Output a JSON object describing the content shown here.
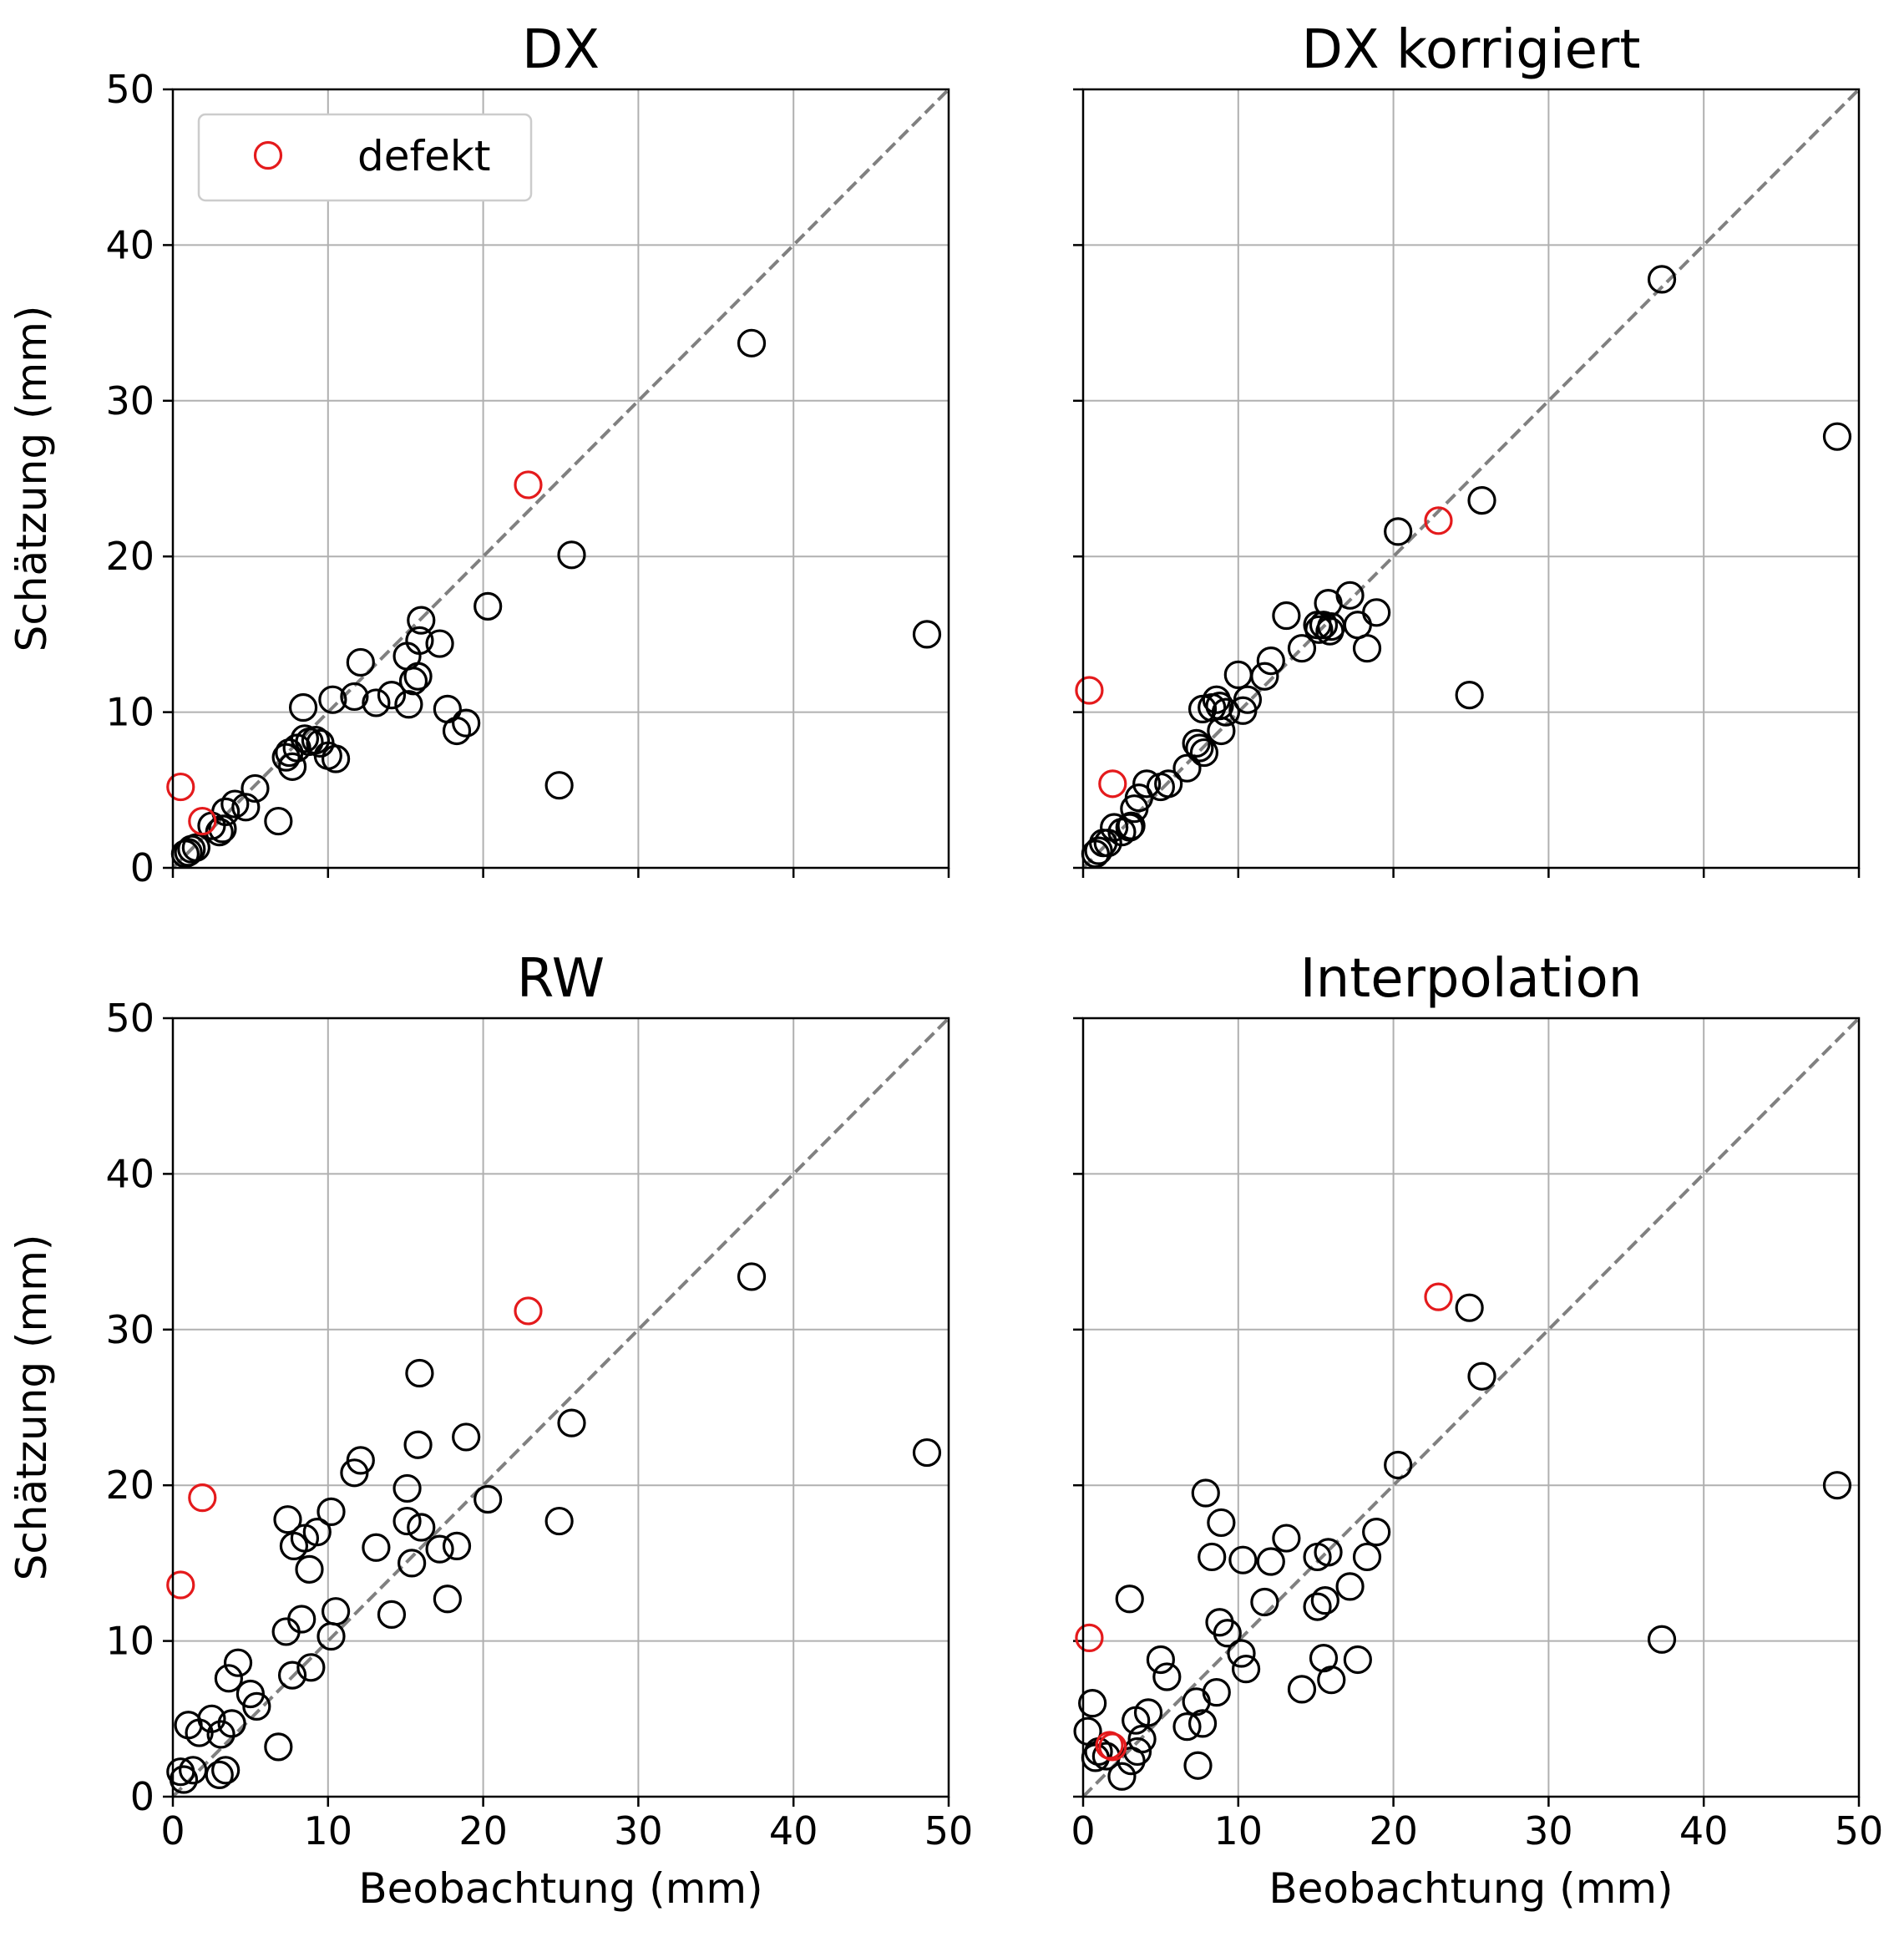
{
  "legend": {
    "label": "defekt",
    "color": "#e41a1c"
  },
  "colors": {
    "normal": "#000000",
    "defective": "#e41a1c",
    "identity": "#808080",
    "grid": "#b0b0b0"
  },
  "chart_data": [
    {
      "type": "scatter",
      "title": "DX",
      "xlabel": "",
      "ylabel": "Schätzung (mm)",
      "xlim": [
        0,
        50
      ],
      "ylim": [
        0,
        50
      ],
      "xticks": [
        0,
        10,
        20,
        30,
        40,
        50
      ],
      "yticks": [
        0,
        10,
        20,
        30,
        40,
        50
      ],
      "show_xticklabels": false,
      "show_yticklabels": true,
      "grid": true,
      "identity_line": true,
      "legend": "top-left",
      "series": [
        {
          "name": "",
          "color": "#000000",
          "points": [
            [
              0.8,
              0.9
            ],
            [
              1.0,
              1.0
            ],
            [
              1.2,
              1.2
            ],
            [
              1.5,
              1.3
            ],
            [
              2.5,
              2.7
            ],
            [
              3.0,
              2.3
            ],
            [
              3.2,
              2.5
            ],
            [
              3.4,
              3.6
            ],
            [
              4.0,
              4.1
            ],
            [
              4.7,
              3.9
            ],
            [
              5.3,
              5.1
            ],
            [
              6.8,
              3.0
            ],
            [
              7.3,
              7.1
            ],
            [
              7.5,
              7.4
            ],
            [
              7.7,
              6.5
            ],
            [
              8.0,
              7.7
            ],
            [
              8.4,
              10.3
            ],
            [
              8.5,
              8.3
            ],
            [
              8.8,
              8.1
            ],
            [
              9.2,
              8.2
            ],
            [
              9.5,
              8.0
            ],
            [
              10.0,
              7.2
            ],
            [
              10.5,
              7.0
            ],
            [
              10.3,
              10.8
            ],
            [
              11.7,
              11.0
            ],
            [
              12.1,
              13.2
            ],
            [
              13.1,
              10.6
            ],
            [
              14.1,
              11.1
            ],
            [
              15.1,
              13.6
            ],
            [
              15.2,
              10.5
            ],
            [
              15.5,
              12.0
            ],
            [
              15.8,
              12.3
            ],
            [
              15.9,
              14.6
            ],
            [
              16.0,
              15.9
            ],
            [
              17.2,
              14.4
            ],
            [
              17.7,
              10.2
            ],
            [
              18.3,
              8.8
            ],
            [
              18.9,
              9.3
            ],
            [
              20.3,
              16.8
            ],
            [
              24.9,
              5.3
            ],
            [
              25.7,
              20.1
            ],
            [
              37.3,
              33.7
            ],
            [
              48.6,
              15.0
            ]
          ]
        },
        {
          "name": "defekt",
          "color": "#e41a1c",
          "points": [
            [
              0.5,
              5.2
            ],
            [
              1.9,
              3.0
            ],
            [
              22.9,
              24.6
            ]
          ]
        }
      ]
    },
    {
      "type": "scatter",
      "title": "DX korrigiert",
      "xlabel": "",
      "ylabel": "",
      "xlim": [
        0,
        50
      ],
      "ylim": [
        0,
        50
      ],
      "xticks": [
        0,
        10,
        20,
        30,
        40,
        50
      ],
      "yticks": [
        0,
        10,
        20,
        30,
        40,
        50
      ],
      "show_xticklabels": false,
      "show_yticklabels": false,
      "grid": true,
      "identity_line": true,
      "series": [
        {
          "name": "",
          "color": "#000000",
          "points": [
            [
              0.8,
              0.9
            ],
            [
              1.0,
              1.1
            ],
            [
              1.3,
              1.6
            ],
            [
              1.6,
              1.6
            ],
            [
              2.0,
              2.6
            ],
            [
              2.5,
              2.3
            ],
            [
              3.0,
              2.6
            ],
            [
              3.1,
              2.7
            ],
            [
              3.3,
              3.8
            ],
            [
              3.6,
              4.5
            ],
            [
              4.1,
              5.4
            ],
            [
              5.0,
              5.2
            ],
            [
              5.5,
              5.4
            ],
            [
              6.7,
              6.4
            ],
            [
              7.3,
              8.0
            ],
            [
              7.5,
              7.7
            ],
            [
              7.7,
              10.2
            ],
            [
              7.8,
              7.4
            ],
            [
              8.3,
              10.3
            ],
            [
              8.6,
              10.8
            ],
            [
              8.8,
              10.4
            ],
            [
              8.9,
              8.8
            ],
            [
              9.2,
              10.0
            ],
            [
              10.0,
              12.4
            ],
            [
              10.3,
              10.1
            ],
            [
              10.6,
              10.8
            ],
            [
              11.7,
              12.3
            ],
            [
              12.1,
              13.3
            ],
            [
              13.1,
              16.2
            ],
            [
              14.1,
              14.1
            ],
            [
              15.1,
              15.6
            ],
            [
              15.2,
              15.3
            ],
            [
              15.5,
              15.6
            ],
            [
              15.8,
              17.0
            ],
            [
              15.9,
              15.2
            ],
            [
              16.0,
              15.5
            ],
            [
              17.2,
              17.5
            ],
            [
              17.7,
              15.6
            ],
            [
              18.3,
              14.1
            ],
            [
              18.9,
              16.4
            ],
            [
              20.3,
              21.6
            ],
            [
              24.9,
              11.1
            ],
            [
              25.7,
              23.6
            ],
            [
              37.3,
              37.8
            ],
            [
              48.6,
              27.7
            ]
          ]
        },
        {
          "name": "defekt",
          "color": "#e41a1c",
          "points": [
            [
              0.4,
              11.4
            ],
            [
              1.9,
              5.4
            ],
            [
              22.9,
              22.3
            ]
          ]
        }
      ]
    },
    {
      "type": "scatter",
      "title": "RW",
      "xlabel": "Beobachtung (mm)",
      "ylabel": "Schätzung (mm)",
      "xlim": [
        0,
        50
      ],
      "ylim": [
        0,
        50
      ],
      "xticks": [
        0,
        10,
        20,
        30,
        40,
        50
      ],
      "yticks": [
        0,
        10,
        20,
        30,
        40,
        50
      ],
      "show_xticklabels": true,
      "show_yticklabels": true,
      "grid": true,
      "identity_line": true,
      "series": [
        {
          "name": "",
          "color": "#000000",
          "points": [
            [
              0.5,
              1.6
            ],
            [
              0.7,
              1.1
            ],
            [
              1.0,
              4.6
            ],
            [
              1.3,
              1.7
            ],
            [
              1.7,
              4.1
            ],
            [
              2.5,
              5.0
            ],
            [
              3.0,
              1.4
            ],
            [
              3.1,
              4.0
            ],
            [
              3.4,
              1.7
            ],
            [
              3.6,
              7.6
            ],
            [
              3.8,
              4.7
            ],
            [
              4.2,
              8.6
            ],
            [
              5.0,
              6.6
            ],
            [
              5.4,
              5.8
            ],
            [
              6.8,
              3.2
            ],
            [
              7.3,
              10.6
            ],
            [
              7.4,
              17.8
            ],
            [
              7.7,
              7.8
            ],
            [
              7.8,
              16.1
            ],
            [
              8.3,
              11.4
            ],
            [
              8.5,
              16.6
            ],
            [
              8.8,
              14.6
            ],
            [
              8.9,
              8.3
            ],
            [
              9.3,
              17.0
            ],
            [
              10.2,
              10.3
            ],
            [
              10.2,
              18.3
            ],
            [
              10.5,
              11.9
            ],
            [
              11.7,
              20.8
            ],
            [
              12.1,
              21.6
            ],
            [
              13.1,
              16.0
            ],
            [
              14.1,
              11.7
            ],
            [
              15.1,
              19.8
            ],
            [
              15.1,
              17.7
            ],
            [
              15.4,
              15.0
            ],
            [
              15.8,
              22.6
            ],
            [
              15.9,
              27.2
            ],
            [
              16.0,
              17.3
            ],
            [
              17.2,
              15.9
            ],
            [
              17.7,
              12.7
            ],
            [
              18.3,
              16.1
            ],
            [
              18.9,
              23.1
            ],
            [
              20.3,
              19.1
            ],
            [
              24.9,
              17.7
            ],
            [
              25.7,
              24.0
            ],
            [
              37.3,
              33.4
            ],
            [
              48.6,
              22.1
            ]
          ]
        },
        {
          "name": "defekt",
          "color": "#e41a1c",
          "points": [
            [
              0.5,
              13.6
            ],
            [
              1.9,
              19.2
            ],
            [
              22.9,
              31.2
            ]
          ]
        }
      ]
    },
    {
      "type": "scatter",
      "title": "Interpolation",
      "xlabel": "Beobachtung (mm)",
      "ylabel": "",
      "xlim": [
        0,
        50
      ],
      "ylim": [
        0,
        50
      ],
      "xticks": [
        0,
        10,
        20,
        30,
        40,
        50
      ],
      "yticks": [
        0,
        10,
        20,
        30,
        40,
        50
      ],
      "show_xticklabels": true,
      "show_yticklabels": false,
      "grid": true,
      "identity_line": true,
      "series": [
        {
          "name": "",
          "color": "#000000",
          "points": [
            [
              0.3,
              4.2
            ],
            [
              0.6,
              6.0
            ],
            [
              0.8,
              2.5
            ],
            [
              1.0,
              2.9
            ],
            [
              1.5,
              2.6
            ],
            [
              2.5,
              1.3
            ],
            [
              3.0,
              12.7
            ],
            [
              3.1,
              2.3
            ],
            [
              3.4,
              4.9
            ],
            [
              3.5,
              2.9
            ],
            [
              3.8,
              3.7
            ],
            [
              4.2,
              5.4
            ],
            [
              5.0,
              8.8
            ],
            [
              5.4,
              7.7
            ],
            [
              6.7,
              4.5
            ],
            [
              7.3,
              6.1
            ],
            [
              7.4,
              2.0
            ],
            [
              7.7,
              4.7
            ],
            [
              7.9,
              19.5
            ],
            [
              8.3,
              15.4
            ],
            [
              8.6,
              6.7
            ],
            [
              8.8,
              11.2
            ],
            [
              8.9,
              17.6
            ],
            [
              9.3,
              10.5
            ],
            [
              10.2,
              9.2
            ],
            [
              10.3,
              15.2
            ],
            [
              10.5,
              8.2
            ],
            [
              11.7,
              12.5
            ],
            [
              12.1,
              15.1
            ],
            [
              13.1,
              16.6
            ],
            [
              14.1,
              6.9
            ],
            [
              15.1,
              15.4
            ],
            [
              15.1,
              12.2
            ],
            [
              15.5,
              8.9
            ],
            [
              15.6,
              12.6
            ],
            [
              15.8,
              15.7
            ],
            [
              16.0,
              7.5
            ],
            [
              17.2,
              13.5
            ],
            [
              17.7,
              8.8
            ],
            [
              18.3,
              15.4
            ],
            [
              18.9,
              17.0
            ],
            [
              20.3,
              21.3
            ],
            [
              24.9,
              31.4
            ],
            [
              25.7,
              27.0
            ],
            [
              37.3,
              10.1
            ],
            [
              48.6,
              20.0
            ]
          ]
        },
        {
          "name": "defekt",
          "color": "#e41a1c",
          "points": [
            [
              0.4,
              10.2
            ],
            [
              1.7,
              3.3
            ],
            [
              1.9,
              3.2
            ],
            [
              22.9,
              32.1
            ]
          ]
        }
      ]
    }
  ]
}
